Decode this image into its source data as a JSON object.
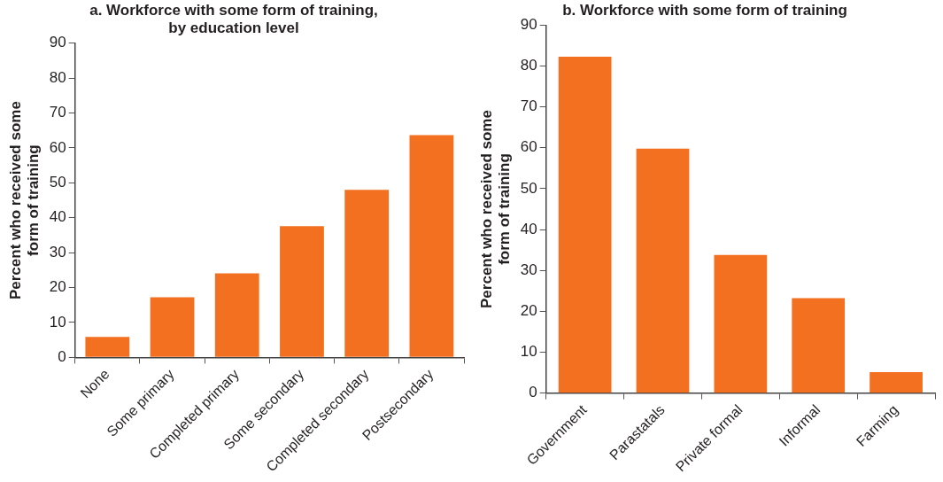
{
  "chart_data": [
    {
      "type": "bar",
      "title": "a. Workforce with some form of training, by education level",
      "ylabel": "Percent who received some form of training",
      "categories": [
        "None",
        "Some primary",
        "Completed primary",
        "Some secondary",
        "Completed secondary",
        "Postsecondary"
      ],
      "values": [
        5.9,
        17.2,
        24.1,
        37.6,
        48.0,
        63.7
      ],
      "color": "#f27020",
      "ylim": [
        0,
        90
      ],
      "yticks": [
        0,
        10,
        20,
        30,
        40,
        50,
        60,
        70,
        80,
        90
      ],
      "grid": false,
      "legend": false
    },
    {
      "type": "bar",
      "title": "b. Workforce with some form of training",
      "ylabel": "Percent who received some form of training",
      "categories": [
        "Government",
        "Parastatals",
        "Private formal",
        "Informal",
        "Farming"
      ],
      "values": [
        82.3,
        59.8,
        33.8,
        23.2,
        5.1
      ],
      "color": "#f27020",
      "ylim": [
        0,
        90
      ],
      "yticks": [
        0,
        10,
        20,
        30,
        40,
        50,
        60,
        70,
        80,
        90
      ],
      "grid": false,
      "legend": false
    }
  ]
}
